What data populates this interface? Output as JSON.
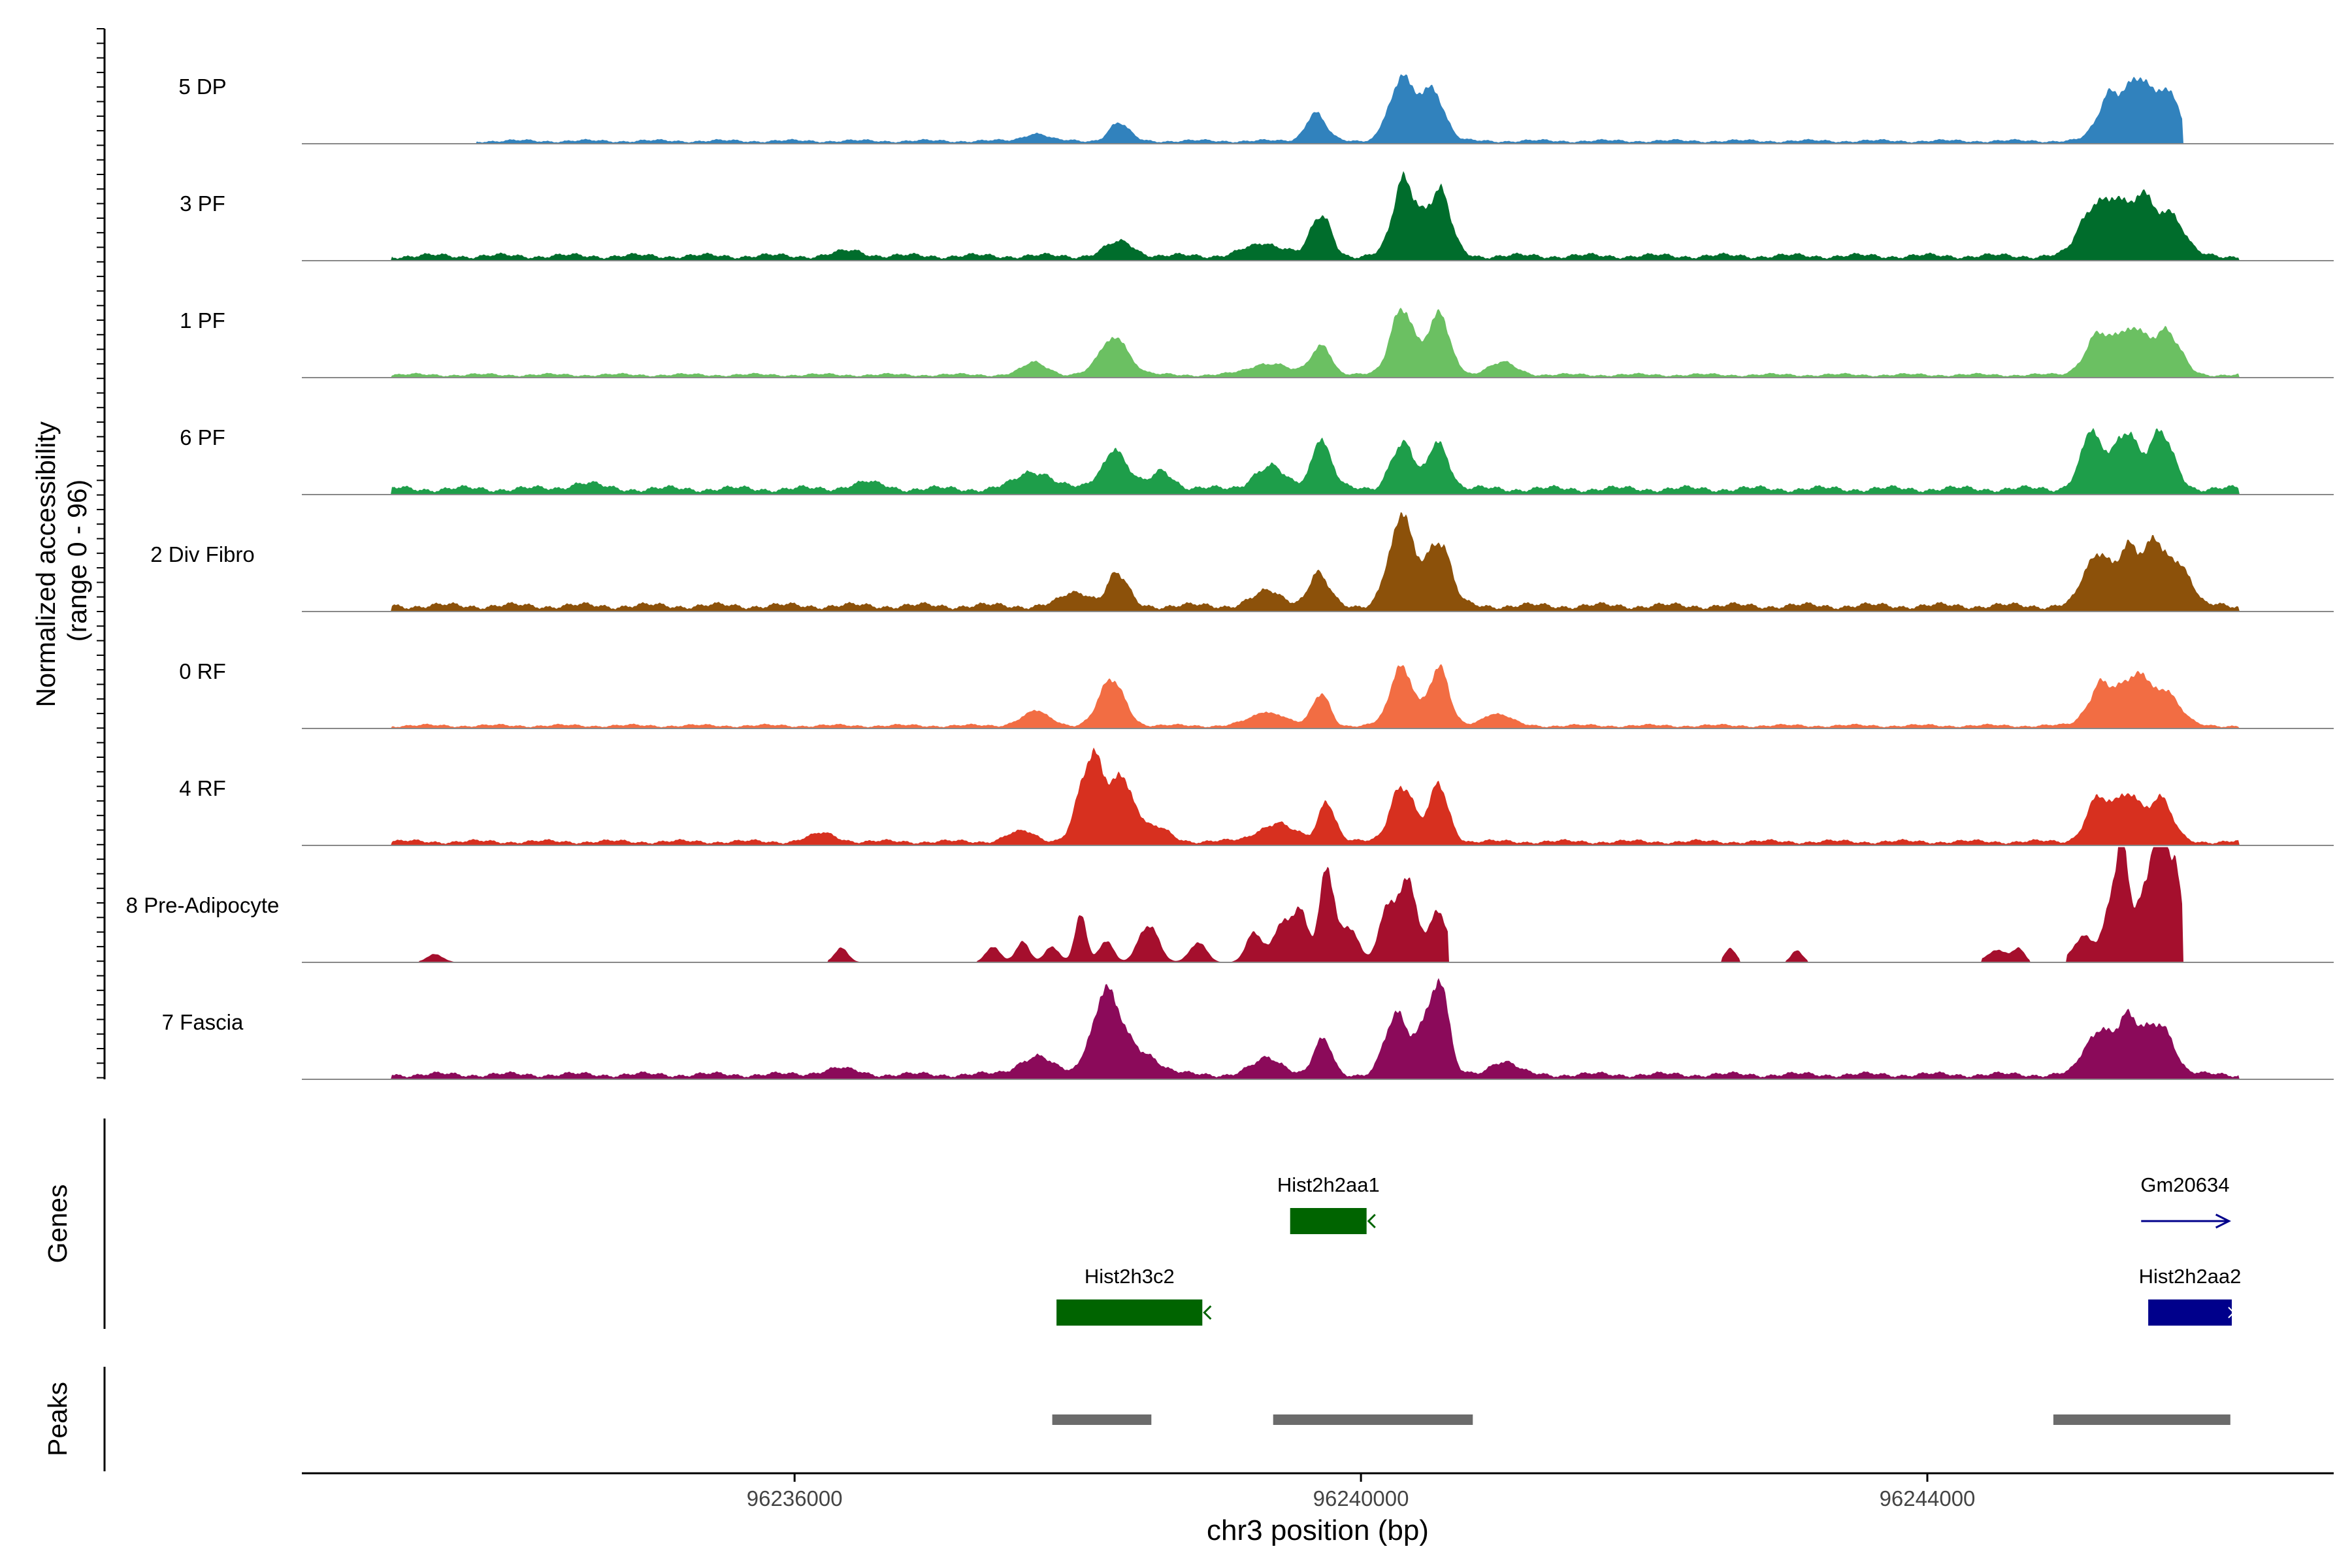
{
  "chart_data": {
    "type": "area",
    "title": "",
    "xlabel": "chr3 position (bp)",
    "ylabel": "Normalized accessibility\n(range 0 - 96)",
    "yrange": [
      0,
      96
    ],
    "xlim": [
      96232520,
      96246870
    ],
    "x_ticks": [
      {
        "value": 96236000,
        "label": "96236000"
      },
      {
        "value": 96240000,
        "label": "96240000"
      },
      {
        "value": 96244000,
        "label": "96244000"
      }
    ],
    "tracks": [
      {
        "name": "5 DP",
        "color": "#3182BD",
        "background": 0.03,
        "regions": [
          [
            96233750,
            96245800
          ]
        ],
        "peaks": [
          [
            96237700,
            0.08,
            80
          ],
          [
            96238290,
            0.18,
            70
          ],
          [
            96239680,
            0.28,
            70
          ],
          [
            96240290,
            0.62,
            90
          ],
          [
            96240510,
            0.5,
            80
          ],
          [
            96245300,
            0.48,
            90
          ],
          [
            96245500,
            0.58,
            80
          ],
          [
            96245700,
            0.5,
            80
          ]
        ]
      },
      {
        "name": "3 PF",
        "color": "#006D2C",
        "background": 0.05,
        "regions": [
          [
            96233150,
            96246200
          ]
        ],
        "peaks": [
          [
            96236400,
            0.05,
            100
          ],
          [
            96238300,
            0.14,
            100
          ],
          [
            96239340,
            0.12,
            150
          ],
          [
            96239720,
            0.4,
            70
          ],
          [
            96240310,
            0.78,
            80
          ],
          [
            96240550,
            0.66,
            80
          ],
          [
            96245160,
            0.46,
            90
          ],
          [
            96245330,
            0.48,
            80
          ],
          [
            96245520,
            0.56,
            80
          ],
          [
            96245720,
            0.42,
            90
          ]
        ]
      },
      {
        "name": "1 PF",
        "color": "#6BC062",
        "background": 0.03,
        "regions": [
          [
            96233150,
            96246200
          ]
        ],
        "peaks": [
          [
            96237700,
            0.12,
            90
          ],
          [
            96238260,
            0.38,
            100
          ],
          [
            96239350,
            0.12,
            130
          ],
          [
            96239720,
            0.3,
            70
          ],
          [
            96240290,
            0.68,
            80
          ],
          [
            96240550,
            0.6,
            80
          ],
          [
            96241000,
            0.12,
            100
          ],
          [
            96245200,
            0.38,
            90
          ],
          [
            96245450,
            0.46,
            110
          ],
          [
            96245700,
            0.4,
            90
          ]
        ]
      },
      {
        "name": "6 PF",
        "color": "#1E9E4A",
        "background": 0.06,
        "regions": [
          [
            96233150,
            96246200
          ]
        ],
        "peaks": [
          [
            96234500,
            0.06,
            100
          ],
          [
            96236500,
            0.06,
            120
          ],
          [
            96237700,
            0.18,
            120
          ],
          [
            96238260,
            0.4,
            90
          ],
          [
            96238600,
            0.18,
            80
          ],
          [
            96239350,
            0.22,
            110
          ],
          [
            96239720,
            0.5,
            70
          ],
          [
            96240290,
            0.46,
            80
          ],
          [
            96240550,
            0.48,
            70
          ],
          [
            96245160,
            0.55,
            80
          ],
          [
            96245400,
            0.58,
            80
          ],
          [
            96245650,
            0.55,
            90
          ]
        ]
      },
      {
        "name": "2 Div Fibro",
        "color": "#8C510A",
        "background": 0.06,
        "regions": [
          [
            96233150,
            96246200
          ]
        ],
        "peaks": [
          [
            96238000,
            0.14,
            100
          ],
          [
            96238280,
            0.32,
            70
          ],
          [
            96239350,
            0.14,
            110
          ],
          [
            96239700,
            0.32,
            70
          ],
          [
            96240290,
            0.88,
            90
          ],
          [
            96240550,
            0.66,
            80
          ],
          [
            96245200,
            0.52,
            90
          ],
          [
            96245420,
            0.55,
            80
          ],
          [
            96245620,
            0.62,
            80
          ],
          [
            96245800,
            0.38,
            70
          ]
        ]
      },
      {
        "name": "0 RF",
        "color": "#F26D43",
        "background": 0.03,
        "regions": [
          [
            96233150,
            96246200
          ]
        ],
        "peaks": [
          [
            96237700,
            0.14,
            100
          ],
          [
            96238240,
            0.46,
            90
          ],
          [
            96239350,
            0.14,
            120
          ],
          [
            96239720,
            0.32,
            60
          ],
          [
            96240290,
            0.6,
            80
          ],
          [
            96240550,
            0.58,
            70
          ],
          [
            96240950,
            0.12,
            100
          ],
          [
            96245230,
            0.42,
            90
          ],
          [
            96245480,
            0.5,
            100
          ],
          [
            96245700,
            0.3,
            90
          ]
        ]
      },
      {
        "name": "4 RF",
        "color": "#D7301F",
        "background": 0.04,
        "regions": [
          [
            96233150,
            96246200
          ]
        ],
        "peaks": [
          [
            96236200,
            0.08,
            100
          ],
          [
            96237600,
            0.1,
            100
          ],
          [
            96238100,
            0.85,
            90
          ],
          [
            96238320,
            0.6,
            80
          ],
          [
            96238550,
            0.14,
            100
          ],
          [
            96239400,
            0.18,
            130
          ],
          [
            96239760,
            0.4,
            60
          ],
          [
            96240290,
            0.58,
            80
          ],
          [
            96240550,
            0.56,
            70
          ],
          [
            96245200,
            0.42,
            80
          ],
          [
            96245420,
            0.48,
            90
          ],
          [
            96245650,
            0.42,
            80
          ]
        ]
      },
      {
        "name": "8 Pre-Adipocyte",
        "color": "#A50F2D",
        "background": 0.0,
        "regions": [
          [
            96233350,
            96233600
          ],
          [
            96236230,
            96236500
          ],
          [
            96237290,
            96240620
          ],
          [
            96242550,
            96242680
          ],
          [
            96243000,
            96243160
          ],
          [
            96244380,
            96244720
          ],
          [
            96244980,
            96245800
          ]
        ],
        "peaks": [
          [
            96233460,
            0.08,
            60
          ],
          [
            96236330,
            0.14,
            50
          ],
          [
            96237400,
            0.16,
            50
          ],
          [
            96237610,
            0.2,
            50
          ],
          [
            96237820,
            0.16,
            50
          ],
          [
            96238020,
            0.5,
            40
          ],
          [
            96238200,
            0.22,
            50
          ],
          [
            96238500,
            0.38,
            70
          ],
          [
            96238850,
            0.2,
            60
          ],
          [
            96239250,
            0.3,
            60
          ],
          [
            96239450,
            0.42,
            60
          ],
          [
            96239580,
            0.5,
            50
          ],
          [
            96239760,
            0.98,
            50
          ],
          [
            96239920,
            0.36,
            60
          ],
          [
            96240180,
            0.48,
            60
          ],
          [
            96240330,
            0.8,
            70
          ],
          [
            96240550,
            0.52,
            60
          ],
          [
            96242610,
            0.14,
            40
          ],
          [
            96243080,
            0.12,
            40
          ],
          [
            96244500,
            0.12,
            80
          ],
          [
            96244650,
            0.12,
            40
          ],
          [
            96245100,
            0.26,
            70
          ],
          [
            96245300,
            0.56,
            60
          ],
          [
            96245380,
            1.0,
            40
          ],
          [
            96245560,
            0.86,
            80
          ],
          [
            96245750,
            0.9,
            50
          ],
          [
            96245650,
            1.02,
            40
          ]
        ]
      },
      {
        "name": "7 Fascia",
        "color": "#8B0A5A",
        "background": 0.05,
        "regions": [
          [
            96233150,
            96246200
          ]
        ],
        "peaks": [
          [
            96236300,
            0.06,
            120
          ],
          [
            96237700,
            0.18,
            120
          ],
          [
            96238200,
            0.82,
            100
          ],
          [
            96238450,
            0.22,
            120
          ],
          [
            96239350,
            0.16,
            110
          ],
          [
            96239730,
            0.36,
            60
          ],
          [
            96240250,
            0.6,
            80
          ],
          [
            96240440,
            0.42,
            60
          ],
          [
            96240560,
            0.9,
            60
          ],
          [
            96241000,
            0.14,
            90
          ],
          [
            96245200,
            0.42,
            90
          ],
          [
            96245420,
            0.55,
            90
          ],
          [
            96245650,
            0.5,
            90
          ]
        ]
      }
    ],
    "genes": [
      {
        "name": "Hist2h2aa1",
        "start": 96239500,
        "end": 96240040,
        "strand": "-",
        "row": 1,
        "color": "#006400"
      },
      {
        "name": "Gm20634",
        "start": 96245510,
        "end": 96246130,
        "strand": "+",
        "row": 1,
        "color": "#00008B"
      },
      {
        "name": "Hist2h3c2",
        "start": 96237850,
        "end": 96238880,
        "strand": "-",
        "row": 2,
        "color": "#006400"
      },
      {
        "name": "Hist2h2aa2",
        "start": 96245560,
        "end": 96246150,
        "strand": "+",
        "row": 2,
        "color": "#00008B"
      }
    ],
    "gene_track_label": "Genes",
    "peak_regions": [
      [
        96237820,
        96238520
      ],
      [
        96239380,
        96240790
      ],
      [
        96244890,
        96246140
      ]
    ],
    "peak_track_label": "Peaks"
  }
}
